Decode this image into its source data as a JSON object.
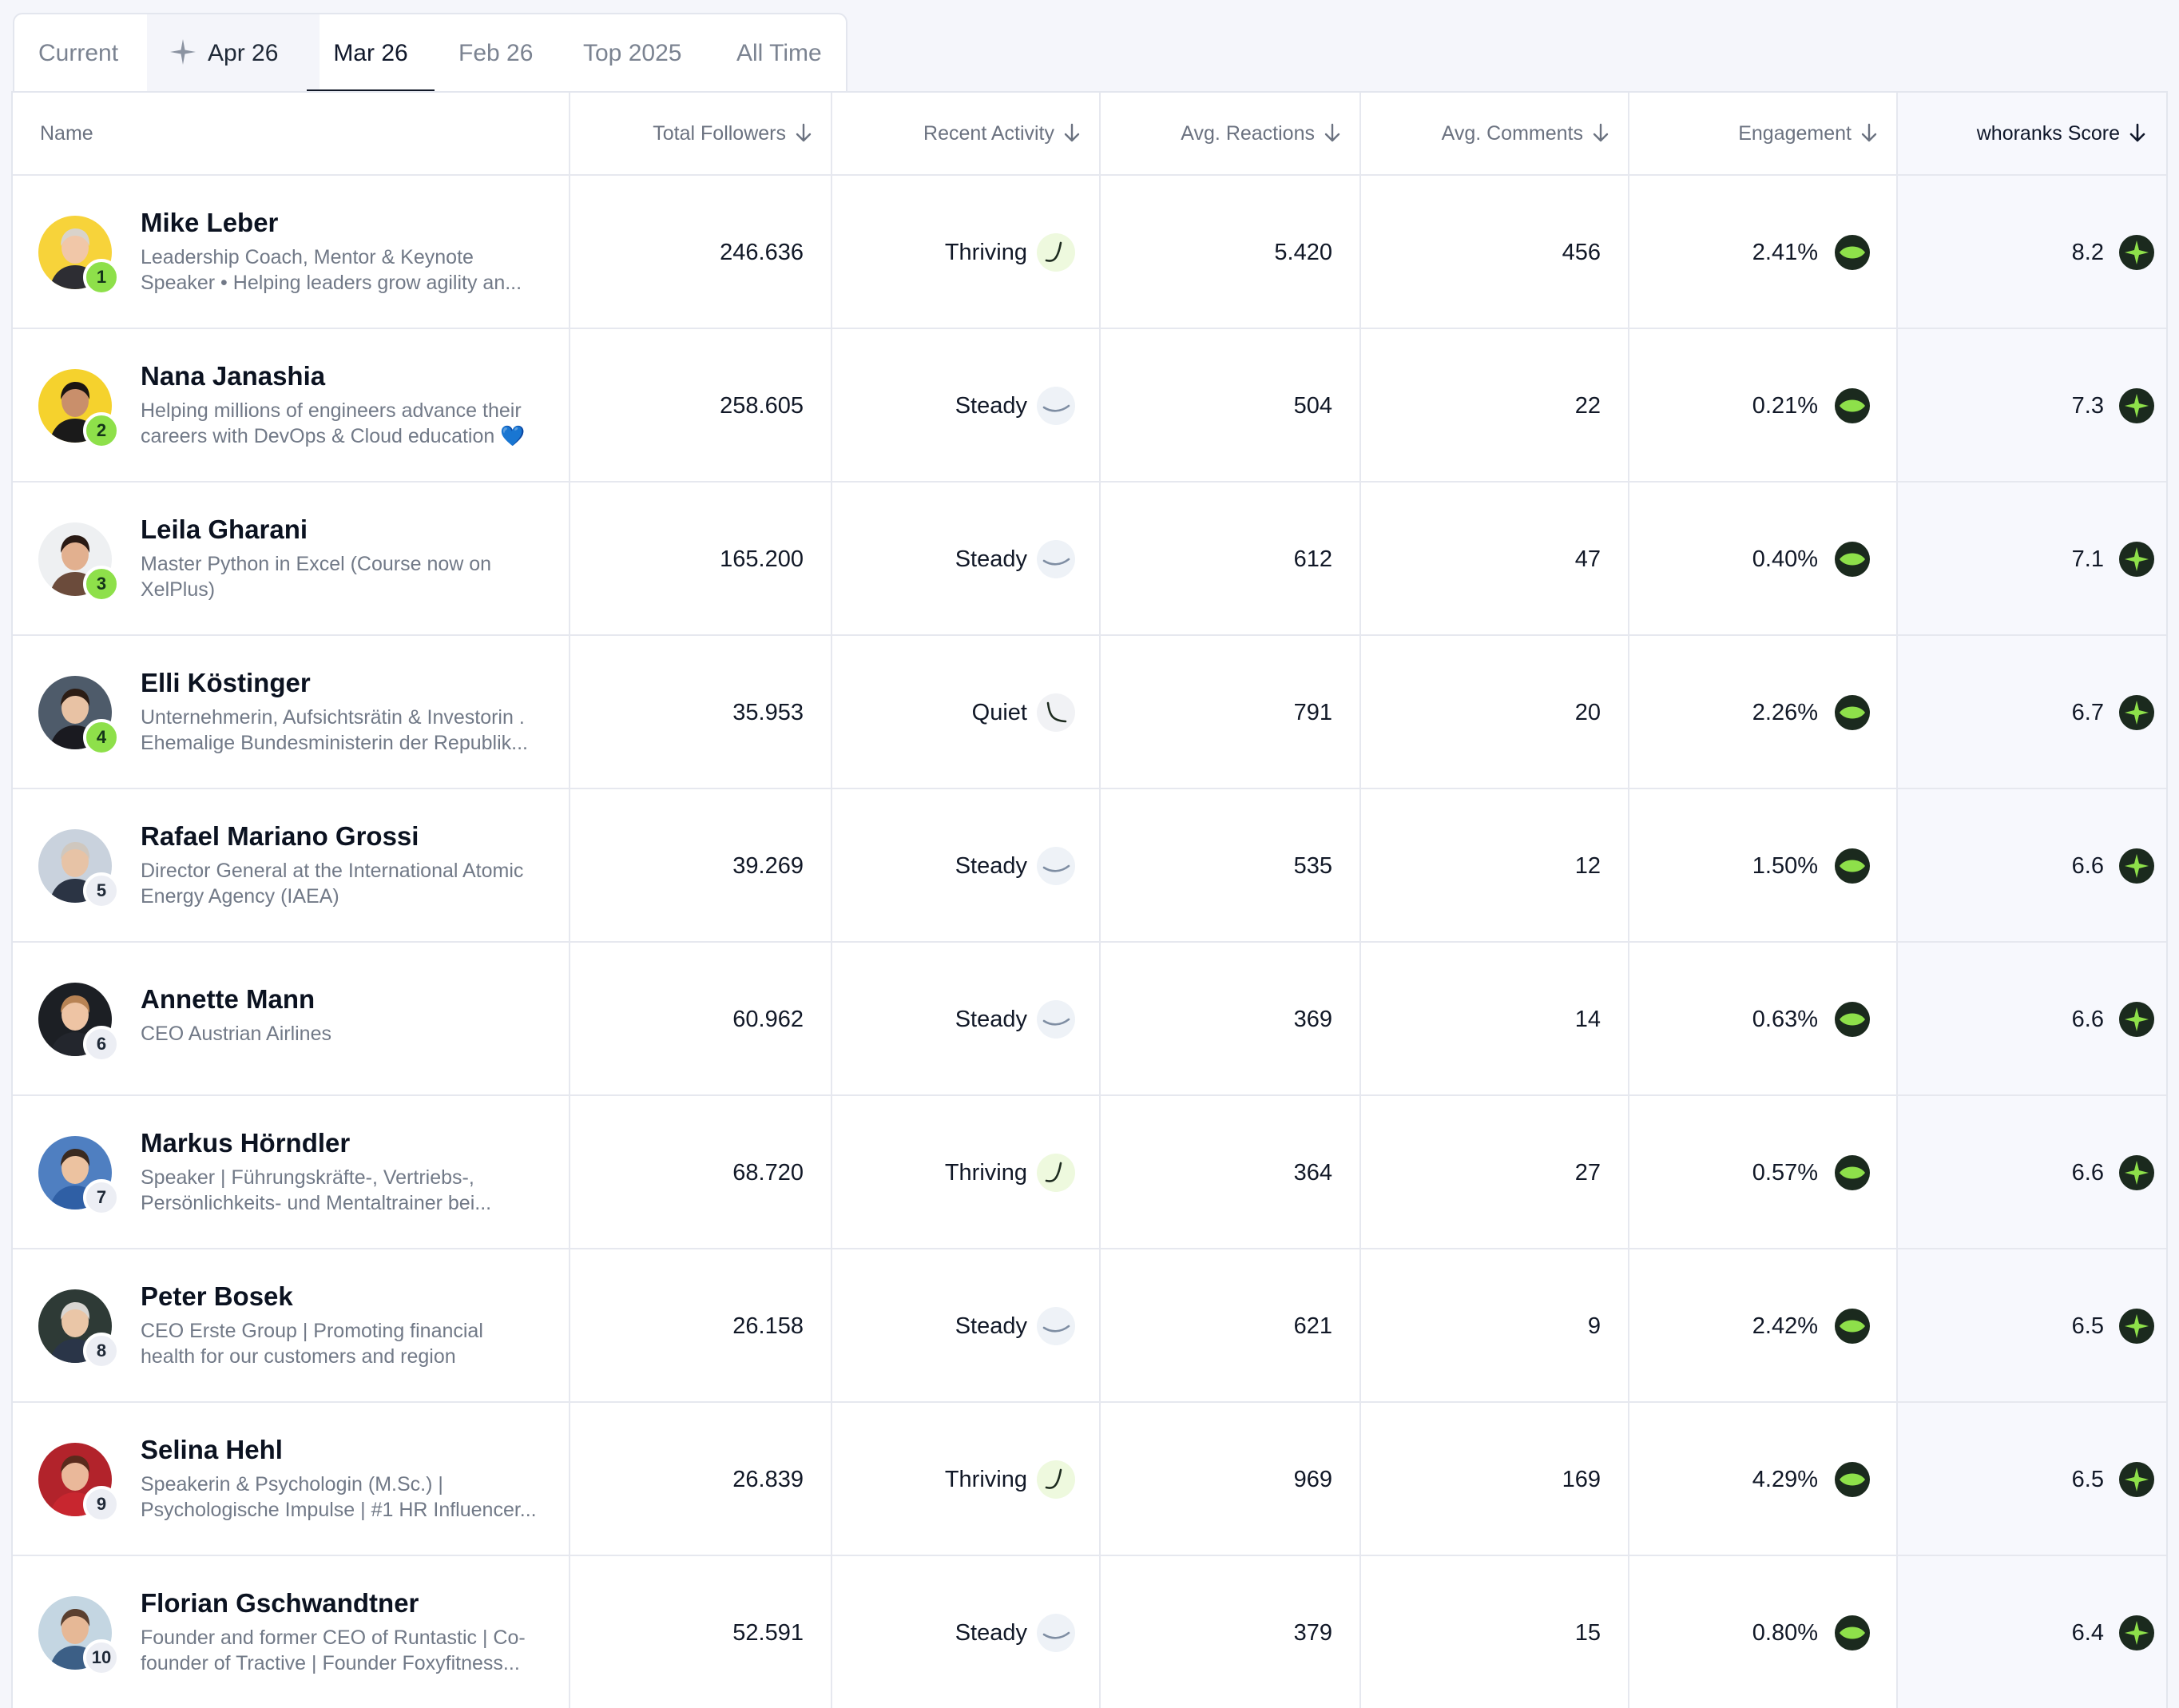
{
  "tabs": [
    "Current",
    "Apr 26",
    "Mar 26",
    "Feb 26",
    "Top 2025",
    "All Time"
  ],
  "active_tab": "Mar 26",
  "columns": {
    "name": "Name",
    "followers": "Total Followers",
    "activity": "Recent Activity",
    "reactions": "Avg. Reactions",
    "comments": "Avg. Comments",
    "engagement": "Engagement",
    "score": "whoranks Score"
  },
  "colors": {
    "accent_green": "#8ee04a",
    "badge_dark": "#1b2a1e",
    "text_primary": "#111827",
    "text_muted": "#717987"
  },
  "rows": [
    {
      "rank": "1",
      "name": "Mike Leber",
      "desc1": "Leadership Coach, Mentor & Keynote",
      "desc2": "Speaker • Helping leaders grow agility an...",
      "followers": "246.636",
      "activity": "Thriving",
      "reactions": "5.420",
      "comments": "456",
      "engagement": "2.41%",
      "score": "8.2"
    },
    {
      "rank": "2",
      "name": "Nana Janashia",
      "desc1": "Helping millions of engineers advance their",
      "desc2": "careers with DevOps & Cloud education 💙",
      "followers": "258.605",
      "activity": "Steady",
      "reactions": "504",
      "comments": "22",
      "engagement": "0.21%",
      "score": "7.3"
    },
    {
      "rank": "3",
      "name": "Leila Gharani",
      "desc1": "Master Python in Excel (Course now on",
      "desc2": "XelPlus)",
      "followers": "165.200",
      "activity": "Steady",
      "reactions": "612",
      "comments": "47",
      "engagement": "0.40%",
      "score": "7.1"
    },
    {
      "rank": "4",
      "name": "Elli Köstinger",
      "desc1": "Unternehmerin, Aufsichtsrätin & Investorin .",
      "desc2": "Ehemalige Bundesministerin der Republik...",
      "followers": "35.953",
      "activity": "Quiet",
      "reactions": "791",
      "comments": "20",
      "engagement": "2.26%",
      "score": "6.7"
    },
    {
      "rank": "5",
      "name": "Rafael Mariano Grossi",
      "desc1": "Director General at the International Atomic",
      "desc2": "Energy Agency (IAEA)",
      "followers": "39.269",
      "activity": "Steady",
      "reactions": "535",
      "comments": "12",
      "engagement": "1.50%",
      "score": "6.6"
    },
    {
      "rank": "6",
      "name": "Annette Mann",
      "desc1": "CEO Austrian Airlines",
      "desc2": "",
      "followers": "60.962",
      "activity": "Steady",
      "reactions": "369",
      "comments": "14",
      "engagement": "0.63%",
      "score": "6.6"
    },
    {
      "rank": "7",
      "name": "Markus Hörndler",
      "desc1": "Speaker | Führungskräfte-, Vertriebs-,",
      "desc2": "Persönlichkeits- und Mentaltrainer bei...",
      "followers": "68.720",
      "activity": "Thriving",
      "reactions": "364",
      "comments": "27",
      "engagement": "0.57%",
      "score": "6.6"
    },
    {
      "rank": "8",
      "name": "Peter Bosek",
      "desc1": "CEO Erste Group | Promoting financial",
      "desc2": "health for our customers and region",
      "followers": "26.158",
      "activity": "Steady",
      "reactions": "621",
      "comments": "9",
      "engagement": "2.42%",
      "score": "6.5"
    },
    {
      "rank": "9",
      "name": "Selina Hehl",
      "desc1": "Speakerin & Psychologin (M.Sc.) |",
      "desc2": "Psychologische Impulse | #1 HR Influencer...",
      "followers": "26.839",
      "activity": "Thriving",
      "reactions": "969",
      "comments": "169",
      "engagement": "4.29%",
      "score": "6.5"
    },
    {
      "rank": "10",
      "name": "Florian Gschwandtner",
      "desc1": "Founder and former CEO of Runtastic | Co-",
      "desc2": "founder of Tractive | Founder Foxyfitness...",
      "followers": "52.591",
      "activity": "Steady",
      "reactions": "379",
      "comments": "15",
      "engagement": "0.80%",
      "score": "6.4"
    }
  ]
}
